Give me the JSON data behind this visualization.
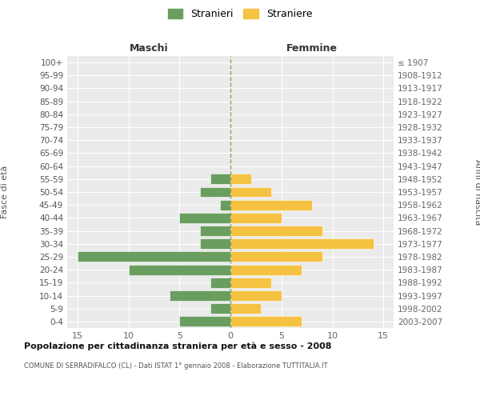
{
  "age_groups": [
    "0-4",
    "5-9",
    "10-14",
    "15-19",
    "20-24",
    "25-29",
    "30-34",
    "35-39",
    "40-44",
    "45-49",
    "50-54",
    "55-59",
    "60-64",
    "65-69",
    "70-74",
    "75-79",
    "80-84",
    "85-89",
    "90-94",
    "95-99",
    "100+"
  ],
  "birth_years": [
    "2003-2007",
    "1998-2002",
    "1993-1997",
    "1988-1992",
    "1983-1987",
    "1978-1982",
    "1973-1977",
    "1968-1972",
    "1963-1967",
    "1958-1962",
    "1953-1957",
    "1948-1952",
    "1943-1947",
    "1938-1942",
    "1933-1937",
    "1928-1932",
    "1923-1927",
    "1918-1922",
    "1913-1917",
    "1908-1912",
    "≤ 1907"
  ],
  "males": [
    5,
    2,
    6,
    2,
    10,
    15,
    3,
    3,
    5,
    1,
    3,
    2,
    0,
    0,
    0,
    0,
    0,
    0,
    0,
    0,
    0
  ],
  "females": [
    7,
    3,
    5,
    4,
    7,
    9,
    14,
    9,
    5,
    8,
    4,
    2,
    0,
    0,
    0,
    0,
    0,
    0,
    0,
    0,
    0
  ],
  "male_color": "#6a9e5e",
  "female_color": "#f5c242",
  "fig_bg": "#ffffff",
  "plot_bg": "#ebebeb",
  "grid_color": "#ffffff",
  "dashed_line_color": "#999966",
  "title": "Popolazione per cittadinanza straniera per età e sesso - 2008",
  "subtitle": "COMUNE DI SERRADIFALCO (CL) - Dati ISTAT 1° gennaio 2008 - Elaborazione TUTTITALIA.IT",
  "header_left": "Maschi",
  "header_right": "Femmine",
  "ylabel_left": "Fasce di età",
  "ylabel_right": "Anni di nascita",
  "legend_male": "Stranieri",
  "legend_female": "Straniere",
  "xlim": 16
}
